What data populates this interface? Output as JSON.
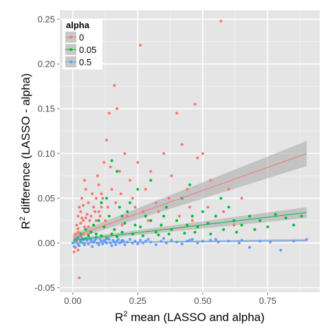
{
  "chart_data": {
    "type": "scatter",
    "xlabel": {
      "pre": "R",
      "sup": "2",
      "post": " mean (LASSO and alpha)"
    },
    "ylabel": {
      "pre": "R",
      "sup": "2",
      "post": " difference (LASSO - alpha)"
    },
    "xlim": [
      -0.05,
      0.95
    ],
    "ylim": [
      -0.055,
      0.26
    ],
    "x_ticks": [
      0,
      0.25,
      0.5,
      0.75
    ],
    "x_tick_labels": [
      "0.00",
      "0.25",
      "0.50",
      "0.75"
    ],
    "y_ticks": [
      -0.05,
      0,
      0.05,
      0.1,
      0.15,
      0.2,
      0.25
    ],
    "y_tick_labels": [
      "-0.05",
      "0.00",
      "0.05",
      "0.10",
      "0.15",
      "0.20",
      "0.25"
    ],
    "grid": true,
    "legend": {
      "title": "alpha",
      "position": "top-left-inside"
    },
    "series": [
      {
        "name": "0",
        "color": "#F8766D",
        "trend": {
          "x": [
            0,
            0.9
          ],
          "y": [
            0.007,
            0.1
          ],
          "band_half_width": [
            0.003,
            0.014
          ]
        },
        "points": [
          [
            0.01,
            0.005
          ],
          [
            0.02,
            0.012
          ],
          [
            0.015,
            0.02
          ],
          [
            0.03,
            0.008
          ],
          [
            0.04,
            0.025
          ],
          [
            0.02,
            0.03
          ],
          [
            0.05,
            0.015
          ],
          [
            0.03,
            0.035
          ],
          [
            0.06,
            0.01
          ],
          [
            0.01,
            -0.005
          ],
          [
            0.005,
            -0.01
          ],
          [
            0.02,
            -0.008
          ],
          [
            0.025,
            -0.039
          ],
          [
            0.04,
            0.042
          ],
          [
            0.05,
            0.06
          ],
          [
            0.07,
            0.03
          ],
          [
            0.08,
            0.02
          ],
          [
            0.06,
            0.045
          ],
          [
            0.09,
            0.05
          ],
          [
            0.1,
            0.065
          ],
          [
            0.11,
            0.04
          ],
          [
            0.12,
            0.09
          ],
          [
            0.13,
            0.115
          ],
          [
            0.14,
            0.145
          ],
          [
            0.15,
            0.06
          ],
          [
            0.16,
            0.176
          ],
          [
            0.17,
            0.15
          ],
          [
            0.18,
            0.08
          ],
          [
            0.2,
            0.1
          ],
          [
            0.22,
            0.07
          ],
          [
            0.25,
            0.09
          ],
          [
            0.26,
            0.221
          ],
          [
            0.23,
            0.05
          ],
          [
            0.28,
            0.06
          ],
          [
            0.3,
            0.08
          ],
          [
            0.33,
            0.035
          ],
          [
            0.35,
            0.1
          ],
          [
            0.38,
            0.075
          ],
          [
            0.4,
            0.145
          ],
          [
            0.42,
            0.11
          ],
          [
            0.45,
            0.04
          ],
          [
            0.47,
            0.155
          ],
          [
            0.5,
            0.1
          ],
          [
            0.53,
            0.07
          ],
          [
            0.55,
            0.03
          ],
          [
            0.57,
            0.248
          ],
          [
            0.6,
            0.06
          ],
          [
            0.65,
            0.05
          ],
          [
            0.62,
            0.02
          ],
          [
            0.035,
            0.05
          ],
          [
            0.045,
            0.07
          ],
          [
            0.055,
            0.032
          ],
          [
            0.075,
            0.055
          ],
          [
            0.085,
            0.035
          ],
          [
            0.095,
            0.075
          ],
          [
            0.105,
            0.03
          ],
          [
            0.115,
            0.05
          ],
          [
            0.125,
            0.025
          ],
          [
            0.135,
            0.04
          ],
          [
            0.145,
            0.085
          ],
          [
            0.165,
            0.045
          ],
          [
            0.185,
            0.055
          ],
          [
            0.21,
            0.03
          ],
          [
            0.24,
            0.04
          ],
          [
            0.27,
            0.035
          ],
          [
            0.32,
            0.045
          ],
          [
            0.37,
            0.05
          ],
          [
            0.44,
            0.06
          ],
          [
            0.48,
            0.095
          ],
          [
            0.52,
            0.04
          ],
          [
            0.02,
            0.016
          ],
          [
            0.03,
            0.022
          ],
          [
            0.04,
            0.01
          ],
          [
            0.05,
            0.028
          ],
          [
            0.06,
            0.018
          ],
          [
            0.07,
            0.012
          ],
          [
            0.015,
            0.002
          ],
          [
            0.025,
            0.04
          ],
          [
            0.035,
            0.028
          ],
          [
            0.01,
            0.01
          ],
          [
            0.045,
            0.018
          ],
          [
            0.065,
            0.025
          ],
          [
            0.08,
            0.04
          ],
          [
            0.09,
            0.025
          ],
          [
            0.1,
            0.035
          ],
          [
            0.11,
            0.055
          ],
          [
            0.19,
            0.02
          ],
          [
            0.29,
            0.025
          ],
          [
            0.34,
            0.02
          ],
          [
            0.41,
            0.03
          ],
          [
            0.46,
            0.025
          ],
          [
            0.58,
            0.035
          ]
        ]
      },
      {
        "name": "0.05",
        "color": "#00BA38",
        "trend": {
          "x": [
            0,
            0.9
          ],
          "y": [
            0.003,
            0.034
          ],
          "band_half_width": [
            0.0015,
            0.006
          ]
        },
        "points": [
          [
            0.01,
            0.003
          ],
          [
            0.02,
            0.006
          ],
          [
            0.03,
            0.01
          ],
          [
            0.04,
            0.004
          ],
          [
            0.05,
            0.015
          ],
          [
            0.06,
            0.008
          ],
          [
            0.07,
            0.012
          ],
          [
            0.08,
            0.02
          ],
          [
            0.09,
            0.01
          ],
          [
            0.1,
            0.025
          ],
          [
            0.12,
            0.018
          ],
          [
            0.14,
            0.03
          ],
          [
            0.16,
            0.015
          ],
          [
            0.18,
            0.04
          ],
          [
            0.2,
            0.022
          ],
          [
            0.22,
            0.045
          ],
          [
            0.24,
            0.02
          ],
          [
            0.26,
            0.018
          ],
          [
            0.28,
            0.03
          ],
          [
            0.3,
            0.025
          ],
          [
            0.32,
            0.012
          ],
          [
            0.34,
            0.02
          ],
          [
            0.36,
            0.04
          ],
          [
            0.38,
            0.015
          ],
          [
            0.4,
            0.025
          ],
          [
            0.42,
            0.05
          ],
          [
            0.44,
            0.02
          ],
          [
            0.46,
            0.03
          ],
          [
            0.48,
            0.018
          ],
          [
            0.5,
            0.035
          ],
          [
            0.52,
            0.022
          ],
          [
            0.55,
            0.03
          ],
          [
            0.58,
            0.015
          ],
          [
            0.6,
            0.04
          ],
          [
            0.62,
            0.025
          ],
          [
            0.65,
            0.02
          ],
          [
            0.68,
            0.03
          ],
          [
            0.7,
            0.015
          ],
          [
            0.72,
            0.025
          ],
          [
            0.75,
            0.018
          ],
          [
            0.78,
            0.032
          ],
          [
            0.82,
            0.028
          ],
          [
            0.85,
            0.02
          ],
          [
            0.88,
            0.03
          ],
          [
            0.15,
            0.092
          ],
          [
            0.17,
            0.08
          ],
          [
            0.25,
            0.06
          ],
          [
            0.3,
            0.07
          ],
          [
            0.11,
            0.045
          ],
          [
            0.13,
            0.05
          ],
          [
            0.19,
            0.03
          ],
          [
            0.21,
            0.035
          ],
          [
            0.35,
            0.03
          ],
          [
            0.45,
            0.065
          ],
          [
            0.47,
            0.012
          ],
          [
            0.57,
            0.05
          ],
          [
            0.03,
            0.002
          ],
          [
            0.05,
            0.005
          ],
          [
            0.07,
            0.003
          ],
          [
            0.09,
            0.006
          ],
          [
            0.11,
            0.008
          ],
          [
            0.13,
            0.005
          ],
          [
            0.15,
            0.01
          ],
          [
            0.17,
            0.007
          ],
          [
            0.19,
            0.012
          ],
          [
            0.23,
            0.01
          ],
          [
            0.27,
            0.008
          ],
          [
            0.33,
            0.009
          ],
          [
            0.37,
            0.01
          ],
          [
            0.43,
            0.011
          ],
          [
            0.53,
            0.01
          ],
          [
            0.63,
            0.012
          ]
        ]
      },
      {
        "name": "0.5",
        "color": "#619CFF",
        "trend": {
          "x": [
            0,
            0.9
          ],
          "y": [
            0.0,
            0.003
          ],
          "band_half_width": [
            0.0008,
            0.0015
          ]
        },
        "points": [
          [
            0.0,
            0.0
          ],
          [
            0.01,
            0.002
          ],
          [
            0.02,
            -0.002
          ],
          [
            0.03,
            0.003
          ],
          [
            0.04,
            0.0
          ],
          [
            0.05,
            0.004
          ],
          [
            0.06,
            -0.001
          ],
          [
            0.07,
            0.002
          ],
          [
            0.08,
            0.001
          ],
          [
            0.09,
            0.005
          ],
          [
            0.1,
            -0.002
          ],
          [
            0.11,
            0.002
          ],
          [
            0.12,
            0.003
          ],
          [
            0.13,
            0.0
          ],
          [
            0.14,
            0.004
          ],
          [
            0.15,
            -0.003
          ],
          [
            0.16,
            0.001
          ],
          [
            0.17,
            0.002
          ],
          [
            0.18,
            0.0
          ],
          [
            0.19,
            0.003
          ],
          [
            0.2,
            -0.002
          ],
          [
            0.21,
            0.001
          ],
          [
            0.22,
            0.004
          ],
          [
            0.23,
            0.0
          ],
          [
            0.24,
            0.002
          ],
          [
            0.25,
            -0.001
          ],
          [
            0.26,
            0.003
          ],
          [
            0.27,
            0.0
          ],
          [
            0.28,
            0.002
          ],
          [
            0.29,
            0.004
          ],
          [
            0.3,
            0.001
          ],
          [
            0.32,
            -0.002
          ],
          [
            0.34,
            0.002
          ],
          [
            0.36,
            0.0
          ],
          [
            0.38,
            0.003
          ],
          [
            0.4,
            0.001
          ],
          [
            0.42,
            -0.001
          ],
          [
            0.44,
            0.002
          ],
          [
            0.46,
            0.004
          ],
          [
            0.48,
            0.0
          ],
          [
            0.5,
            0.002
          ],
          [
            0.53,
            0.003
          ],
          [
            0.56,
            0.001
          ],
          [
            0.6,
            0.002
          ],
          [
            0.64,
            0.0
          ],
          [
            0.68,
            -0.005
          ],
          [
            0.72,
            0.002
          ],
          [
            0.76,
            0.001
          ],
          [
            0.8,
            -0.008
          ],
          [
            0.85,
            0.002
          ],
          [
            0.9,
            0.004
          ],
          [
            0.005,
            -0.004
          ],
          [
            0.015,
            0.005
          ],
          [
            0.025,
            -0.003
          ],
          [
            0.035,
            0.006
          ],
          [
            0.045,
            -0.002
          ],
          [
            0.055,
            0.003
          ],
          [
            0.065,
            0.005
          ],
          [
            0.075,
            -0.004
          ],
          [
            0.085,
            0.003
          ],
          [
            0.095,
            0.0
          ],
          [
            0.105,
            0.004
          ],
          [
            0.115,
            -0.001
          ],
          [
            0.125,
            0.002
          ],
          [
            0.135,
            0.005
          ],
          [
            0.145,
            0.0
          ],
          [
            0.155,
            0.003
          ],
          [
            0.165,
            -0.002
          ],
          [
            0.175,
            0.004
          ],
          [
            0.185,
            0.001
          ],
          [
            0.195,
            0.002
          ],
          [
            0.35,
            0.005
          ],
          [
            0.45,
            0.003
          ],
          [
            0.55,
            0.004
          ],
          [
            0.65,
            0.003
          ]
        ]
      }
    ]
  }
}
